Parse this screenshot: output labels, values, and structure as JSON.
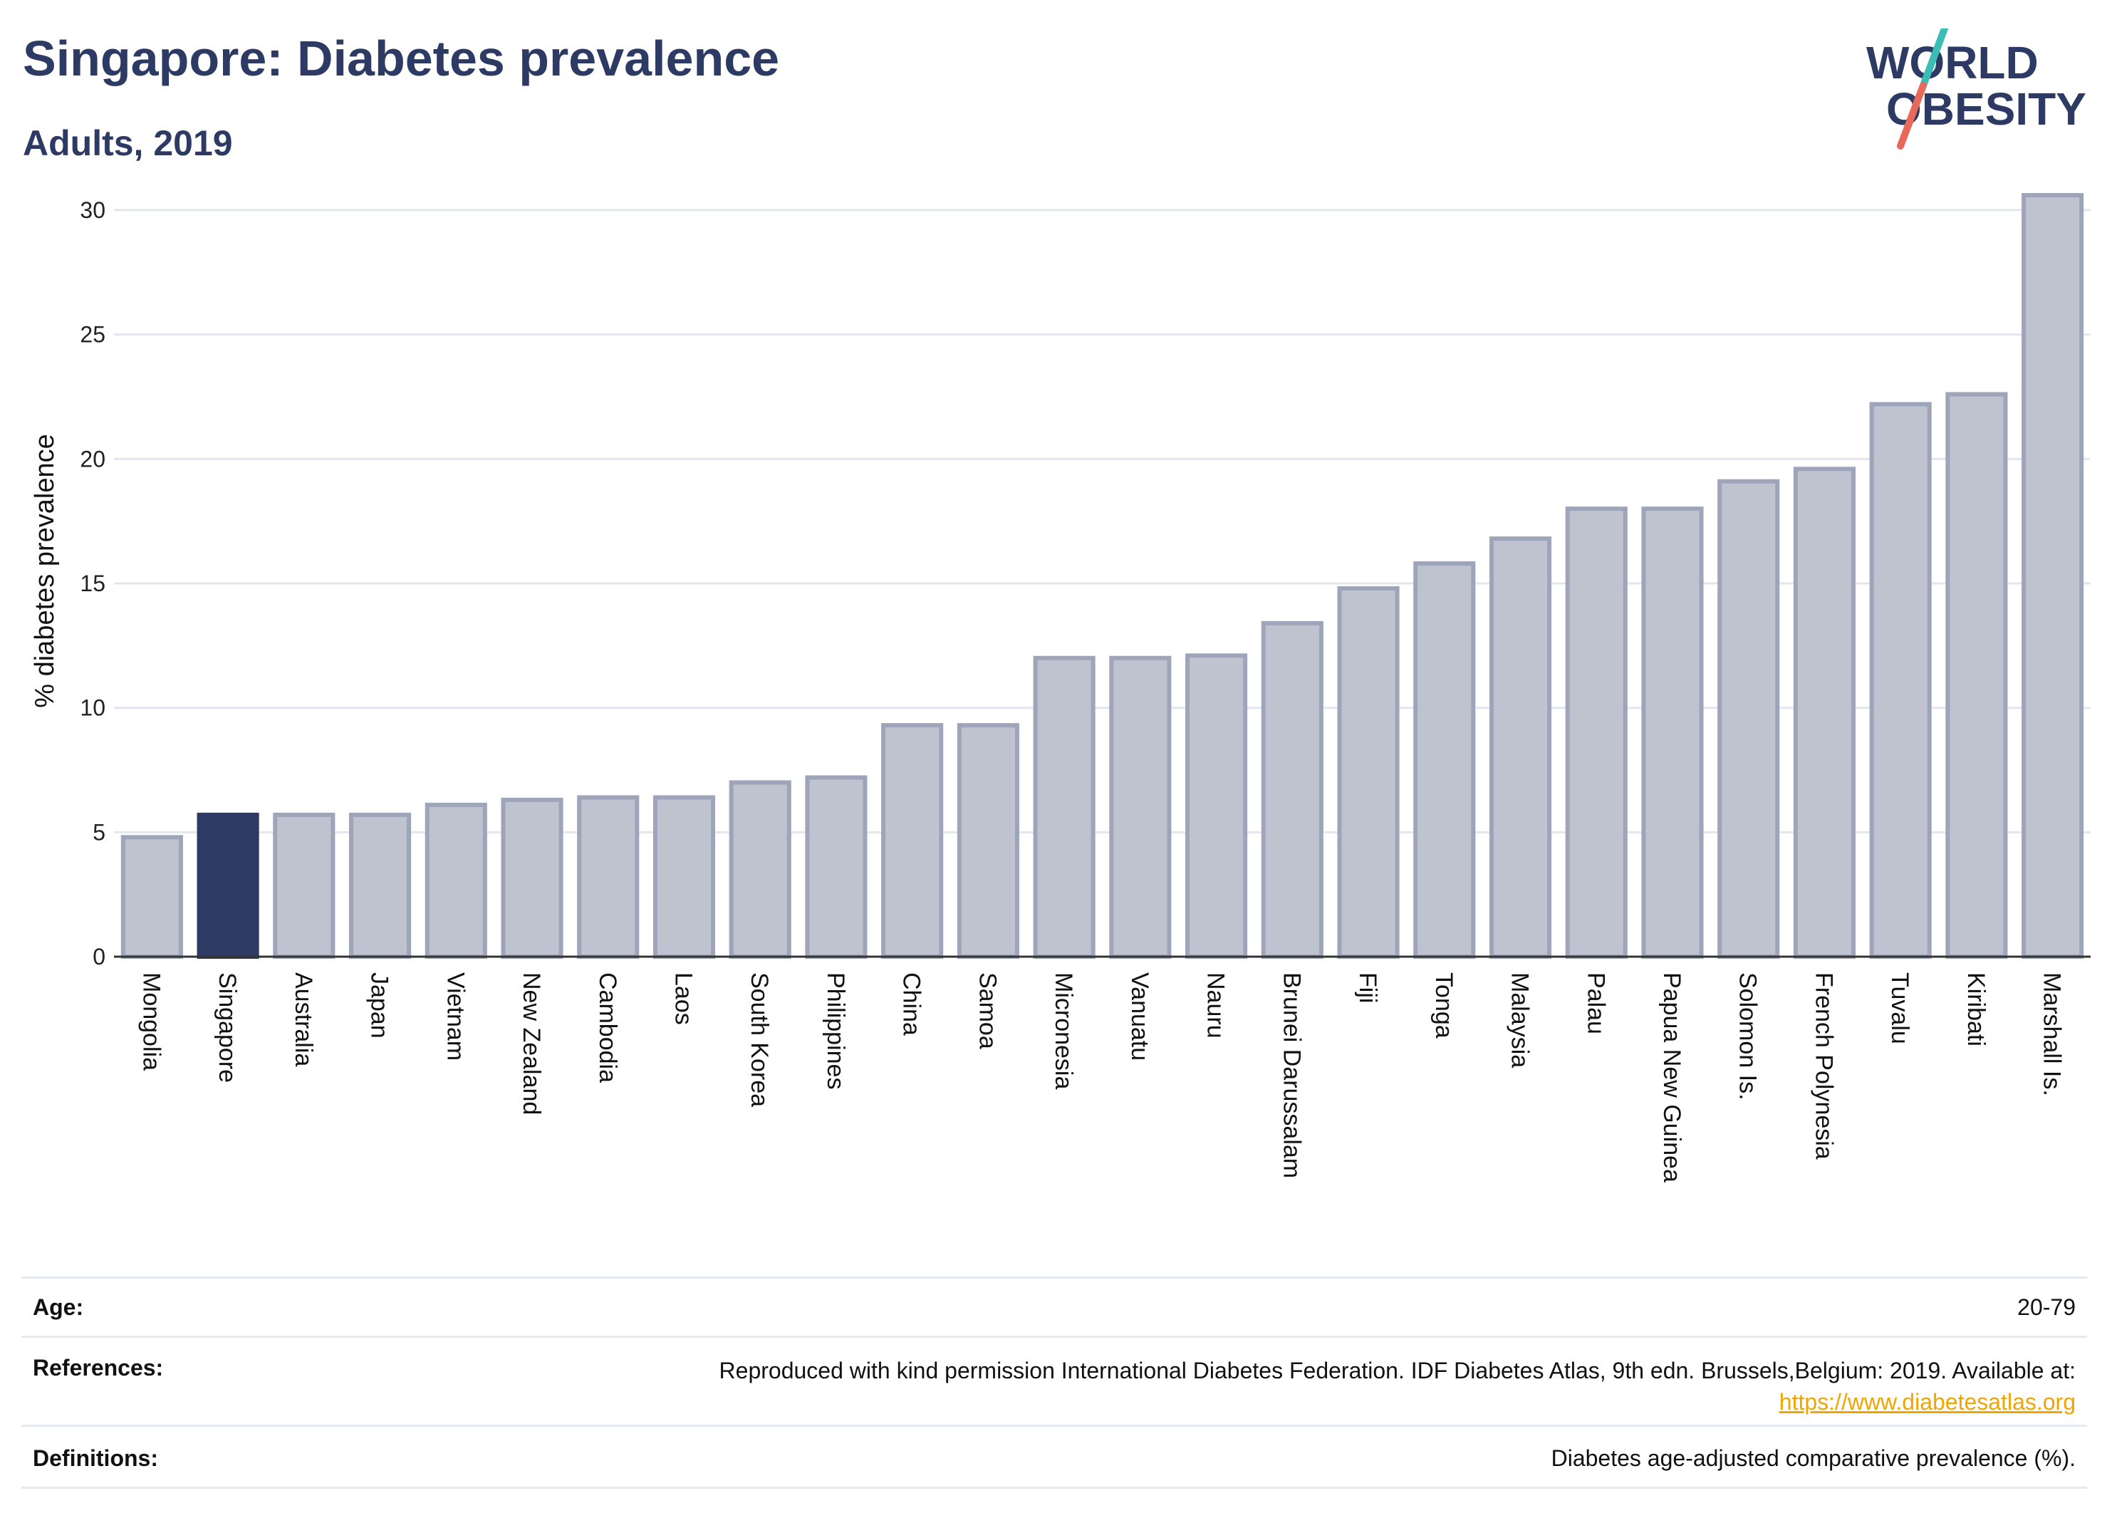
{
  "title": "Singapore: Diabetes prevalence",
  "subtitle": "Adults, 2019",
  "logo": {
    "line1": "WORLD",
    "line2": "OBESITY"
  },
  "colors": {
    "highlight": "#2d3a63",
    "bar_fill": "#bfc3cf",
    "bar_stroke": "#9ea4ba",
    "title": "#2d3a63",
    "link": "#f0a500"
  },
  "chart_data": {
    "type": "bar",
    "ylabel": "% diabetes prevalence",
    "xlabel": "",
    "ylim": [
      0,
      31
    ],
    "yticks": [
      0,
      5,
      10,
      15,
      20,
      25,
      30
    ],
    "grid": true,
    "highlight": "Singapore",
    "categories": [
      "Mongolia",
      "Singapore",
      "Australia",
      "Japan",
      "Vietnam",
      "New Zealand",
      "Cambodia",
      "Laos",
      "South Korea",
      "Philippines",
      "China",
      "Samoa",
      "Micronesia",
      "Vanuatu",
      "Nauru",
      "Brunei Darussalam",
      "Fiji",
      "Tonga",
      "Malaysia",
      "Palau",
      "Papua New Guinea",
      "Solomon Is.",
      "French Polynesia",
      "Tuvalu",
      "Kiribati",
      "Marshall Is."
    ],
    "values": [
      4.8,
      5.7,
      5.7,
      5.7,
      6.1,
      6.3,
      6.4,
      6.4,
      7.0,
      7.2,
      9.3,
      9.3,
      12.0,
      12.0,
      12.1,
      13.4,
      14.8,
      15.8,
      16.8,
      18.0,
      18.0,
      19.1,
      19.6,
      22.2,
      22.6,
      30.6
    ]
  },
  "info": {
    "age_label": "Age:",
    "age_value": "20-79",
    "references_label": "References:",
    "references_text": "Reproduced with kind permission International Diabetes Federation. IDF Diabetes Atlas, 9th edn. Brussels,Belgium: 2019. Available at:",
    "references_link": "https://www.diabetesatlas.org",
    "definitions_label": "Definitions:",
    "definitions_value": "Diabetes age-adjusted comparative prevalence (%)."
  }
}
